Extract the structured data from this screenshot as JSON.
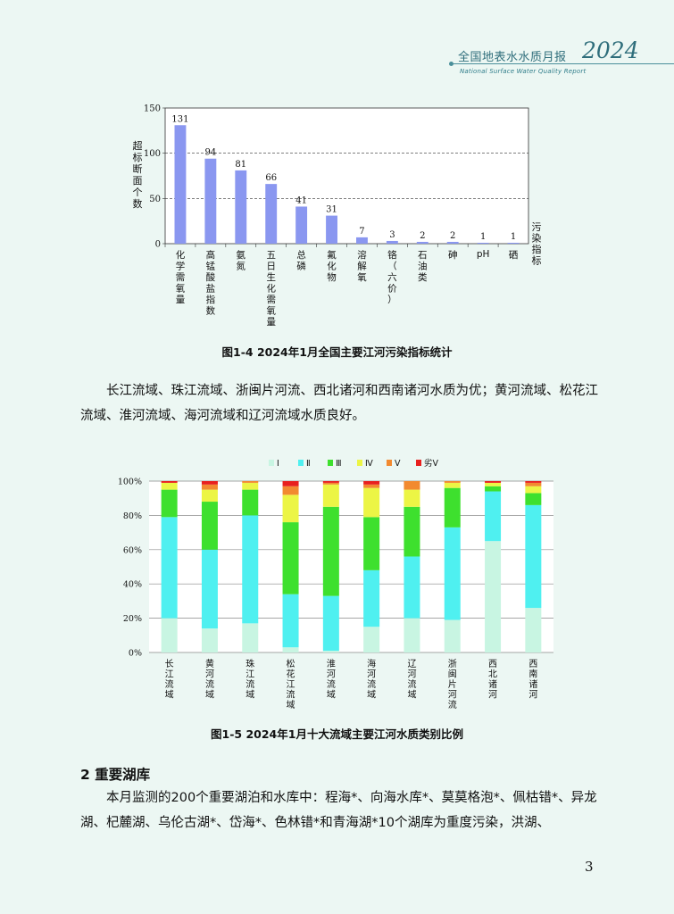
{
  "header": {
    "title": "全国地表水水质月报",
    "year": "2024",
    "subtitle": "National Surface Water Quality Report"
  },
  "figure1": {
    "caption": "图1-4 2024年1月全国主要江河污染指标统计",
    "ylabel": "超标断面个数",
    "xlabel": "污染指标",
    "yticks": [
      "0",
      "50",
      "100",
      "150"
    ],
    "chart_data": {
      "type": "bar",
      "categories": [
        "化学需氧量",
        "高锰酸盐指数",
        "氨氮",
        "五日生化需氧量",
        "总磷",
        "氟化物",
        "溶解氧",
        "铬（六价）",
        "石油类",
        "砷",
        "pH",
        "硒"
      ],
      "values": [
        131,
        94,
        81,
        66,
        41,
        31,
        7,
        3,
        2,
        2,
        1,
        1
      ],
      "ylim": [
        0,
        150
      ],
      "grid": "dashed at 50 and 100",
      "color": "#8a97f0"
    }
  },
  "text1": "长江流域、珠江流域、浙闽片河流、西北诸河和西南诸河水质为优；黄河流域、松花江流域、淮河流域、海河流域和辽河流域水质良好。",
  "figure2": {
    "caption": "图1-5 2024年1月十大流域主要江河水质类别比例",
    "yticks": [
      "0%",
      "20%",
      "40%",
      "60%",
      "80%",
      "100%"
    ],
    "chart_data": {
      "type": "bar",
      "stacked": true,
      "categories": [
        "长江流域",
        "黄河流域",
        "珠江流域",
        "松花江流域",
        "淮河流域",
        "海河流域",
        "辽河流域",
        "浙闽片河流",
        "西北诸河",
        "西南诸河"
      ],
      "series": [
        {
          "name": "Ⅰ",
          "color": "#c8f5e2",
          "values": [
            20,
            14,
            17,
            3,
            1,
            15,
            20,
            19,
            65,
            26
          ]
        },
        {
          "name": "Ⅱ",
          "color": "#4ff0f0",
          "values": [
            59,
            46,
            63,
            31,
            32,
            33,
            36,
            54,
            29,
            60
          ]
        },
        {
          "name": "Ⅲ",
          "color": "#3ee02e",
          "values": [
            16,
            28,
            15,
            42,
            52,
            31,
            29,
            23,
            3,
            7
          ]
        },
        {
          "name": "Ⅳ",
          "color": "#ecf545",
          "values": [
            4,
            7,
            4,
            16,
            13,
            17,
            10,
            3,
            2,
            4
          ]
        },
        {
          "name": "Ⅴ",
          "color": "#f28a30",
          "values": [
            0,
            3,
            1,
            5,
            1,
            2,
            5,
            1,
            0,
            2
          ]
        },
        {
          "name": "劣Ⅴ",
          "color": "#e8201e",
          "values": [
            1,
            2,
            0,
            3,
            1,
            2,
            0,
            0,
            1,
            1
          ]
        }
      ],
      "ylim": [
        0,
        100
      ],
      "grid": "horizontal lines at 20% steps",
      "legend": "top-center"
    }
  },
  "section": {
    "heading": "2 重要湖库",
    "text": "本月监测的200个重要湖泊和水库中：程海*、向海水库*、莫莫格泡*、佩枯错*、异龙湖、杞麓湖、乌伦古湖*、岱海*、色林错*和青海湖*10个湖库为重度污染，洪湖、"
  },
  "page_number": "3"
}
